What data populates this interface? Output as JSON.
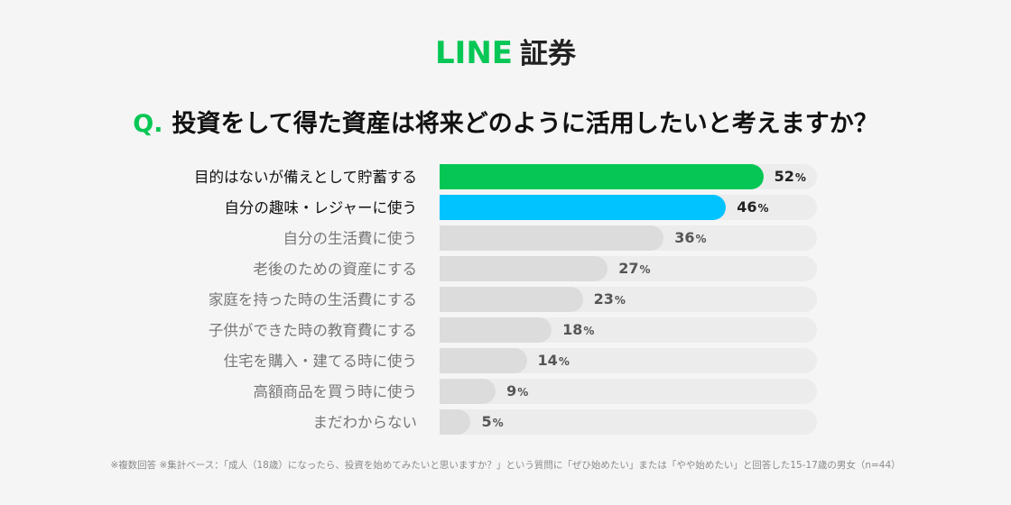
{
  "logo": {
    "brand": "LINE",
    "suffix": "証券"
  },
  "question": {
    "prefix": "Q.",
    "text": "投資をして得た資産は将来どのように活用したいと考えますか？"
  },
  "colors": {
    "highlight_1": "#06c755",
    "highlight_2": "#00c3ff",
    "default_bar": "#dcdcdc",
    "track": "#ececec"
  },
  "chart_data": {
    "type": "bar",
    "orientation": "horizontal",
    "categories": [
      "目的はないが備えとして貯蓄する",
      "自分の趣味・レジャーに使う",
      "自分の生活費に使う",
      "老後のための資産にする",
      "家庭を持った時の生活費にする",
      "子供ができた時の教育費にする",
      "住宅を購入・建てる時に使う",
      "高額商品を買う時に使う",
      "まだわからない"
    ],
    "values": [
      52,
      46,
      36,
      27,
      23,
      18,
      14,
      9,
      5
    ],
    "unit": "%",
    "xlim": [
      0,
      100
    ],
    "highlight": [
      {
        "index": 0,
        "color": "#06c755"
      },
      {
        "index": 1,
        "color": "#00c3ff"
      }
    ]
  },
  "footnote": "※複数回答 ※集計ベース：「成人（18歳）になったら、投資を始めてみたいと思いますか？」という質問に「ぜひ始めたい」または「やや始めたい」と回答した15-17歳の男女（n=44）"
}
